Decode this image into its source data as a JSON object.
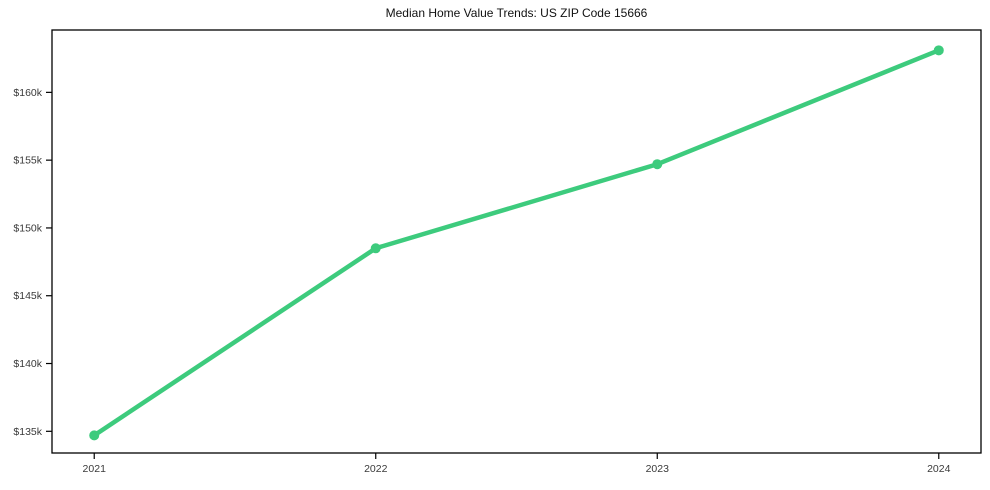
{
  "title": "Median Home Value Trends: US ZIP Code 15666",
  "colors": {
    "line": "#3dcb7d",
    "marker": "#3dcb7d",
    "axis": "#000000",
    "tick_label": "#3a3a3a",
    "background": "#ffffff"
  },
  "chart_data": {
    "type": "line",
    "title": "Median Home Value Trends: US ZIP Code 15666",
    "xlabel": "",
    "ylabel": "",
    "series": [
      {
        "name": "Median Home Value",
        "x": [
          2021,
          2022,
          2023,
          2024
        ],
        "values": [
          134700,
          148500,
          154700,
          163100
        ]
      }
    ],
    "x_tick_labels": [
      "2021",
      "2022",
      "2023",
      "2024"
    ],
    "x_tick_values": [
      2021,
      2022,
      2023,
      2024
    ],
    "y_tick_labels": [
      "$135k",
      "$140k",
      "$145k",
      "$150k",
      "$155k",
      "$160k"
    ],
    "y_tick_values": [
      135000,
      140000,
      145000,
      150000,
      155000,
      160000
    ],
    "xlim": [
      2020.85,
      2024.15
    ],
    "ylim": [
      133400,
      164600
    ],
    "grid": false,
    "legend": false,
    "marker": "circle",
    "line_width": 4.5,
    "marker_radius": 5
  }
}
